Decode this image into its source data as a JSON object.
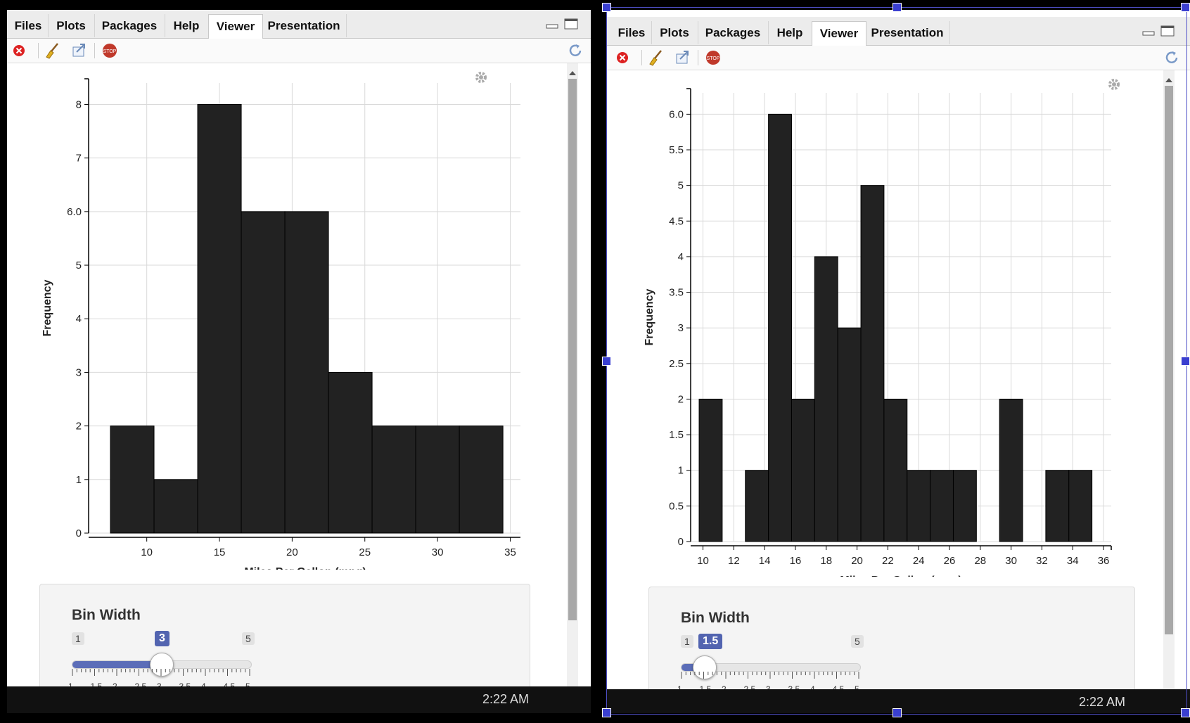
{
  "colors": {
    "bar": "#222222",
    "accent": "#5264b0",
    "grid": "#d9d9d9"
  },
  "icons": [
    "close-x-icon",
    "broom-icon",
    "export-icon",
    "stop-icon",
    "refresh-icon",
    "gear-icon",
    "minimize-icon",
    "maximize-icon"
  ],
  "tabs": [
    "Files",
    "Plots",
    "Packages",
    "Help",
    "Viewer",
    "Presentation"
  ],
  "active_tab": "Viewer",
  "stop_label": "STOP",
  "clock": "2:22 AM",
  "left": {
    "slider": {
      "title": "Bin Width",
      "min_label": "1",
      "max_label": "5",
      "value_label": "3",
      "value": 3,
      "ticks": [
        "1",
        "1.5",
        "2",
        "2.5",
        "3",
        "3.5",
        "4",
        "4.5",
        "5"
      ]
    }
  },
  "right": {
    "slider": {
      "title": "Bin Width",
      "min_label": "1",
      "max_label": "5",
      "value_label": "1.5",
      "value": 1.5,
      "ticks": [
        "1",
        "1.5",
        "2",
        "2.5",
        "3",
        "3.5",
        "4",
        "4.5",
        "5"
      ]
    }
  },
  "chart_data": [
    {
      "type": "bar",
      "xlabel": "Miles Per Gallon (mpg)",
      "ylabel": "Frequency",
      "bin_width": 3,
      "bins": [
        {
          "x0": 7.5,
          "x1": 10.5,
          "count": 2
        },
        {
          "x0": 10.5,
          "x1": 13.5,
          "count": 1
        },
        {
          "x0": 13.5,
          "x1": 16.5,
          "count": 8
        },
        {
          "x0": 16.5,
          "x1": 19.5,
          "count": 6
        },
        {
          "x0": 19.5,
          "x1": 22.5,
          "count": 6
        },
        {
          "x0": 22.5,
          "x1": 25.5,
          "count": 3
        },
        {
          "x0": 25.5,
          "x1": 28.5,
          "count": 2
        },
        {
          "x0": 28.5,
          "x1": 31.5,
          "count": 2
        },
        {
          "x0": 31.5,
          "x1": 34.5,
          "count": 2
        }
      ],
      "xlim": [
        6,
        35.8
      ],
      "ylim": [
        0,
        8.4
      ],
      "x_ticks": [
        10,
        15,
        20,
        25,
        30,
        35
      ],
      "y_ticks": [
        0,
        1,
        2,
        3,
        4,
        5,
        6,
        7,
        8
      ],
      "y_tick_labels": [
        "0",
        "1",
        "2",
        "3",
        "4",
        "5",
        "6.0",
        "7",
        "8"
      ],
      "grid": true
    },
    {
      "type": "bar",
      "xlabel": "Miles Per Gallon (mpg)",
      "ylabel": "Frequency",
      "bin_width": 1.5,
      "bins": [
        {
          "x0": 9.75,
          "x1": 11.25,
          "count": 2
        },
        {
          "x0": 11.25,
          "x1": 12.75,
          "count": 0
        },
        {
          "x0": 12.75,
          "x1": 14.25,
          "count": 1
        },
        {
          "x0": 14.25,
          "x1": 15.75,
          "count": 6
        },
        {
          "x0": 15.75,
          "x1": 17.25,
          "count": 2
        },
        {
          "x0": 17.25,
          "x1": 18.75,
          "count": 4
        },
        {
          "x0": 18.75,
          "x1": 20.25,
          "count": 3
        },
        {
          "x0": 20.25,
          "x1": 21.75,
          "count": 5
        },
        {
          "x0": 21.75,
          "x1": 23.25,
          "count": 2
        },
        {
          "x0": 23.25,
          "x1": 24.75,
          "count": 1
        },
        {
          "x0": 24.75,
          "x1": 26.25,
          "count": 1
        },
        {
          "x0": 26.25,
          "x1": 27.75,
          "count": 1
        },
        {
          "x0": 27.75,
          "x1": 29.25,
          "count": 0
        },
        {
          "x0": 29.25,
          "x1": 30.75,
          "count": 2
        },
        {
          "x0": 30.75,
          "x1": 32.25,
          "count": 0
        },
        {
          "x0": 32.25,
          "x1": 33.75,
          "count": 1
        },
        {
          "x0": 33.75,
          "x1": 35.25,
          "count": 1
        }
      ],
      "xlim": [
        9.2,
        36.5
      ],
      "ylim": [
        0,
        6.3
      ],
      "x_ticks": [
        10,
        12,
        14,
        16,
        18,
        20,
        22,
        24,
        26,
        28,
        30,
        32,
        34,
        36
      ],
      "y_ticks": [
        0,
        0.5,
        1,
        1.5,
        2,
        2.5,
        3,
        3.5,
        4,
        4.5,
        5,
        5.5,
        6
      ],
      "y_tick_labels": [
        "0",
        "0.5",
        "1",
        "1.5",
        "2",
        "2.5",
        "3",
        "3.5",
        "4",
        "4.5",
        "5",
        "5.5",
        "6.0"
      ],
      "grid": true
    }
  ]
}
